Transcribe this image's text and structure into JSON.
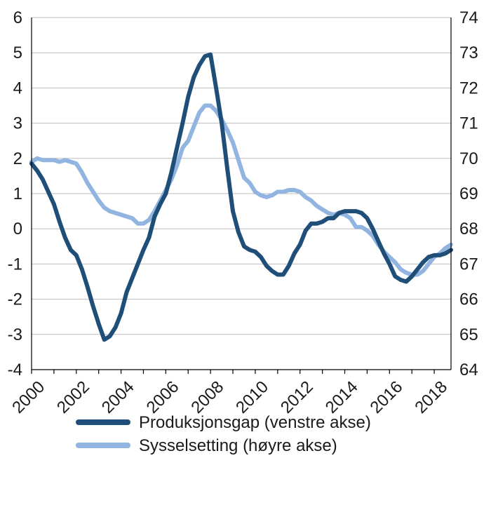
{
  "chart_data": {
    "type": "line",
    "x_range": [
      2000,
      2018.75
    ],
    "left_axis": {
      "range": [
        -4,
        6
      ],
      "ticks": [
        "-4",
        "-3",
        "-2",
        "-1",
        "0",
        "1",
        "2",
        "3",
        "4",
        "5",
        "6"
      ]
    },
    "right_axis": {
      "range": [
        64,
        74
      ],
      "ticks": [
        "64",
        "65",
        "66",
        "67",
        "68",
        "69",
        "70",
        "71",
        "72",
        "73",
        "74"
      ]
    },
    "x_ticks": [
      "2000",
      "2002",
      "2004",
      "2006",
      "2008",
      "2010",
      "2012",
      "2014",
      "2016",
      "2018"
    ],
    "grid": "horizontal",
    "legend_position": "bottom",
    "series": [
      {
        "name": "Produksjonsgap (venstre akse)",
        "axis": "left",
        "color": "#1f4e79",
        "x": [
          2000,
          2000.25,
          2000.5,
          2000.75,
          2001,
          2001.25,
          2001.5,
          2001.75,
          2002,
          2002.25,
          2002.5,
          2002.75,
          2003,
          2003.25,
          2003.5,
          2003.75,
          2004,
          2004.25,
          2004.5,
          2004.75,
          2005,
          2005.25,
          2005.5,
          2005.75,
          2006,
          2006.25,
          2006.5,
          2006.75,
          2007,
          2007.25,
          2007.5,
          2007.75,
          2008,
          2008.25,
          2008.5,
          2008.75,
          2009,
          2009.25,
          2009.5,
          2009.75,
          2010,
          2010.25,
          2010.5,
          2010.75,
          2011,
          2011.25,
          2011.5,
          2011.75,
          2012,
          2012.25,
          2012.5,
          2012.75,
          2013,
          2013.25,
          2013.5,
          2013.75,
          2014,
          2014.25,
          2014.5,
          2014.75,
          2015,
          2015.25,
          2015.5,
          2015.75,
          2016,
          2016.25,
          2016.5,
          2016.75,
          2017,
          2017.25,
          2017.5,
          2017.75,
          2018,
          2018.25,
          2018.5,
          2018.75
        ],
        "values": [
          1.85,
          1.65,
          1.4,
          1.05,
          0.7,
          0.2,
          -0.25,
          -0.6,
          -0.75,
          -1.15,
          -1.65,
          -2.2,
          -2.7,
          -3.15,
          -3.05,
          -2.8,
          -2.4,
          -1.8,
          -1.4,
          -1.0,
          -0.6,
          -0.25,
          0.35,
          0.7,
          1.0,
          1.6,
          2.3,
          3.0,
          3.75,
          4.3,
          4.65,
          4.9,
          4.95,
          4.0,
          3.0,
          1.7,
          0.5,
          -0.1,
          -0.5,
          -0.6,
          -0.65,
          -0.8,
          -1.05,
          -1.2,
          -1.3,
          -1.3,
          -1.05,
          -0.7,
          -0.45,
          -0.05,
          0.15,
          0.15,
          0.2,
          0.3,
          0.3,
          0.45,
          0.5,
          0.5,
          0.5,
          0.45,
          0.3,
          0.0,
          -0.35,
          -0.7,
          -1.0,
          -1.35,
          -1.45,
          -1.5,
          -1.35,
          -1.15,
          -0.95,
          -0.8,
          -0.75,
          -0.75,
          -0.7,
          -0.6
        ]
      },
      {
        "name": "Sysselsetting (høyre akse)",
        "axis": "right",
        "color": "#92b4e0",
        "x": [
          2000,
          2000.25,
          2000.5,
          2000.75,
          2001,
          2001.25,
          2001.5,
          2001.75,
          2002,
          2002.25,
          2002.5,
          2002.75,
          2003,
          2003.25,
          2003.5,
          2003.75,
          2004,
          2004.25,
          2004.5,
          2004.75,
          2005,
          2005.25,
          2005.5,
          2005.75,
          2006,
          2006.25,
          2006.5,
          2006.75,
          2007,
          2007.25,
          2007.5,
          2007.75,
          2008,
          2008.25,
          2008.5,
          2008.75,
          2009,
          2009.25,
          2009.5,
          2009.75,
          2010,
          2010.25,
          2010.5,
          2010.75,
          2011,
          2011.25,
          2011.5,
          2011.75,
          2012,
          2012.25,
          2012.5,
          2012.75,
          2013,
          2013.25,
          2013.5,
          2013.75,
          2014,
          2014.25,
          2014.5,
          2014.75,
          2015,
          2015.25,
          2015.5,
          2015.75,
          2016,
          2016.25,
          2016.5,
          2016.75,
          2017,
          2017.25,
          2017.5,
          2017.75,
          2018,
          2018.25,
          2018.5,
          2018.75
        ],
        "values": [
          69.9,
          70.0,
          69.95,
          69.95,
          69.95,
          69.9,
          69.95,
          69.9,
          69.85,
          69.6,
          69.3,
          69.05,
          68.8,
          68.6,
          68.5,
          68.45,
          68.4,
          68.35,
          68.3,
          68.15,
          68.15,
          68.25,
          68.5,
          68.8,
          69.1,
          69.4,
          69.8,
          70.3,
          70.5,
          70.9,
          71.3,
          71.5,
          71.5,
          71.35,
          71.1,
          70.8,
          70.45,
          69.95,
          69.45,
          69.3,
          69.05,
          68.95,
          68.9,
          68.95,
          69.05,
          69.05,
          69.1,
          69.1,
          69.05,
          68.9,
          68.8,
          68.65,
          68.55,
          68.45,
          68.4,
          68.45,
          68.4,
          68.3,
          68.05,
          68.05,
          67.95,
          67.8,
          67.55,
          67.35,
          67.2,
          67.05,
          66.85,
          66.75,
          66.7,
          66.7,
          66.8,
          67.0,
          67.2,
          67.3,
          67.45,
          67.55
        ]
      }
    ]
  }
}
